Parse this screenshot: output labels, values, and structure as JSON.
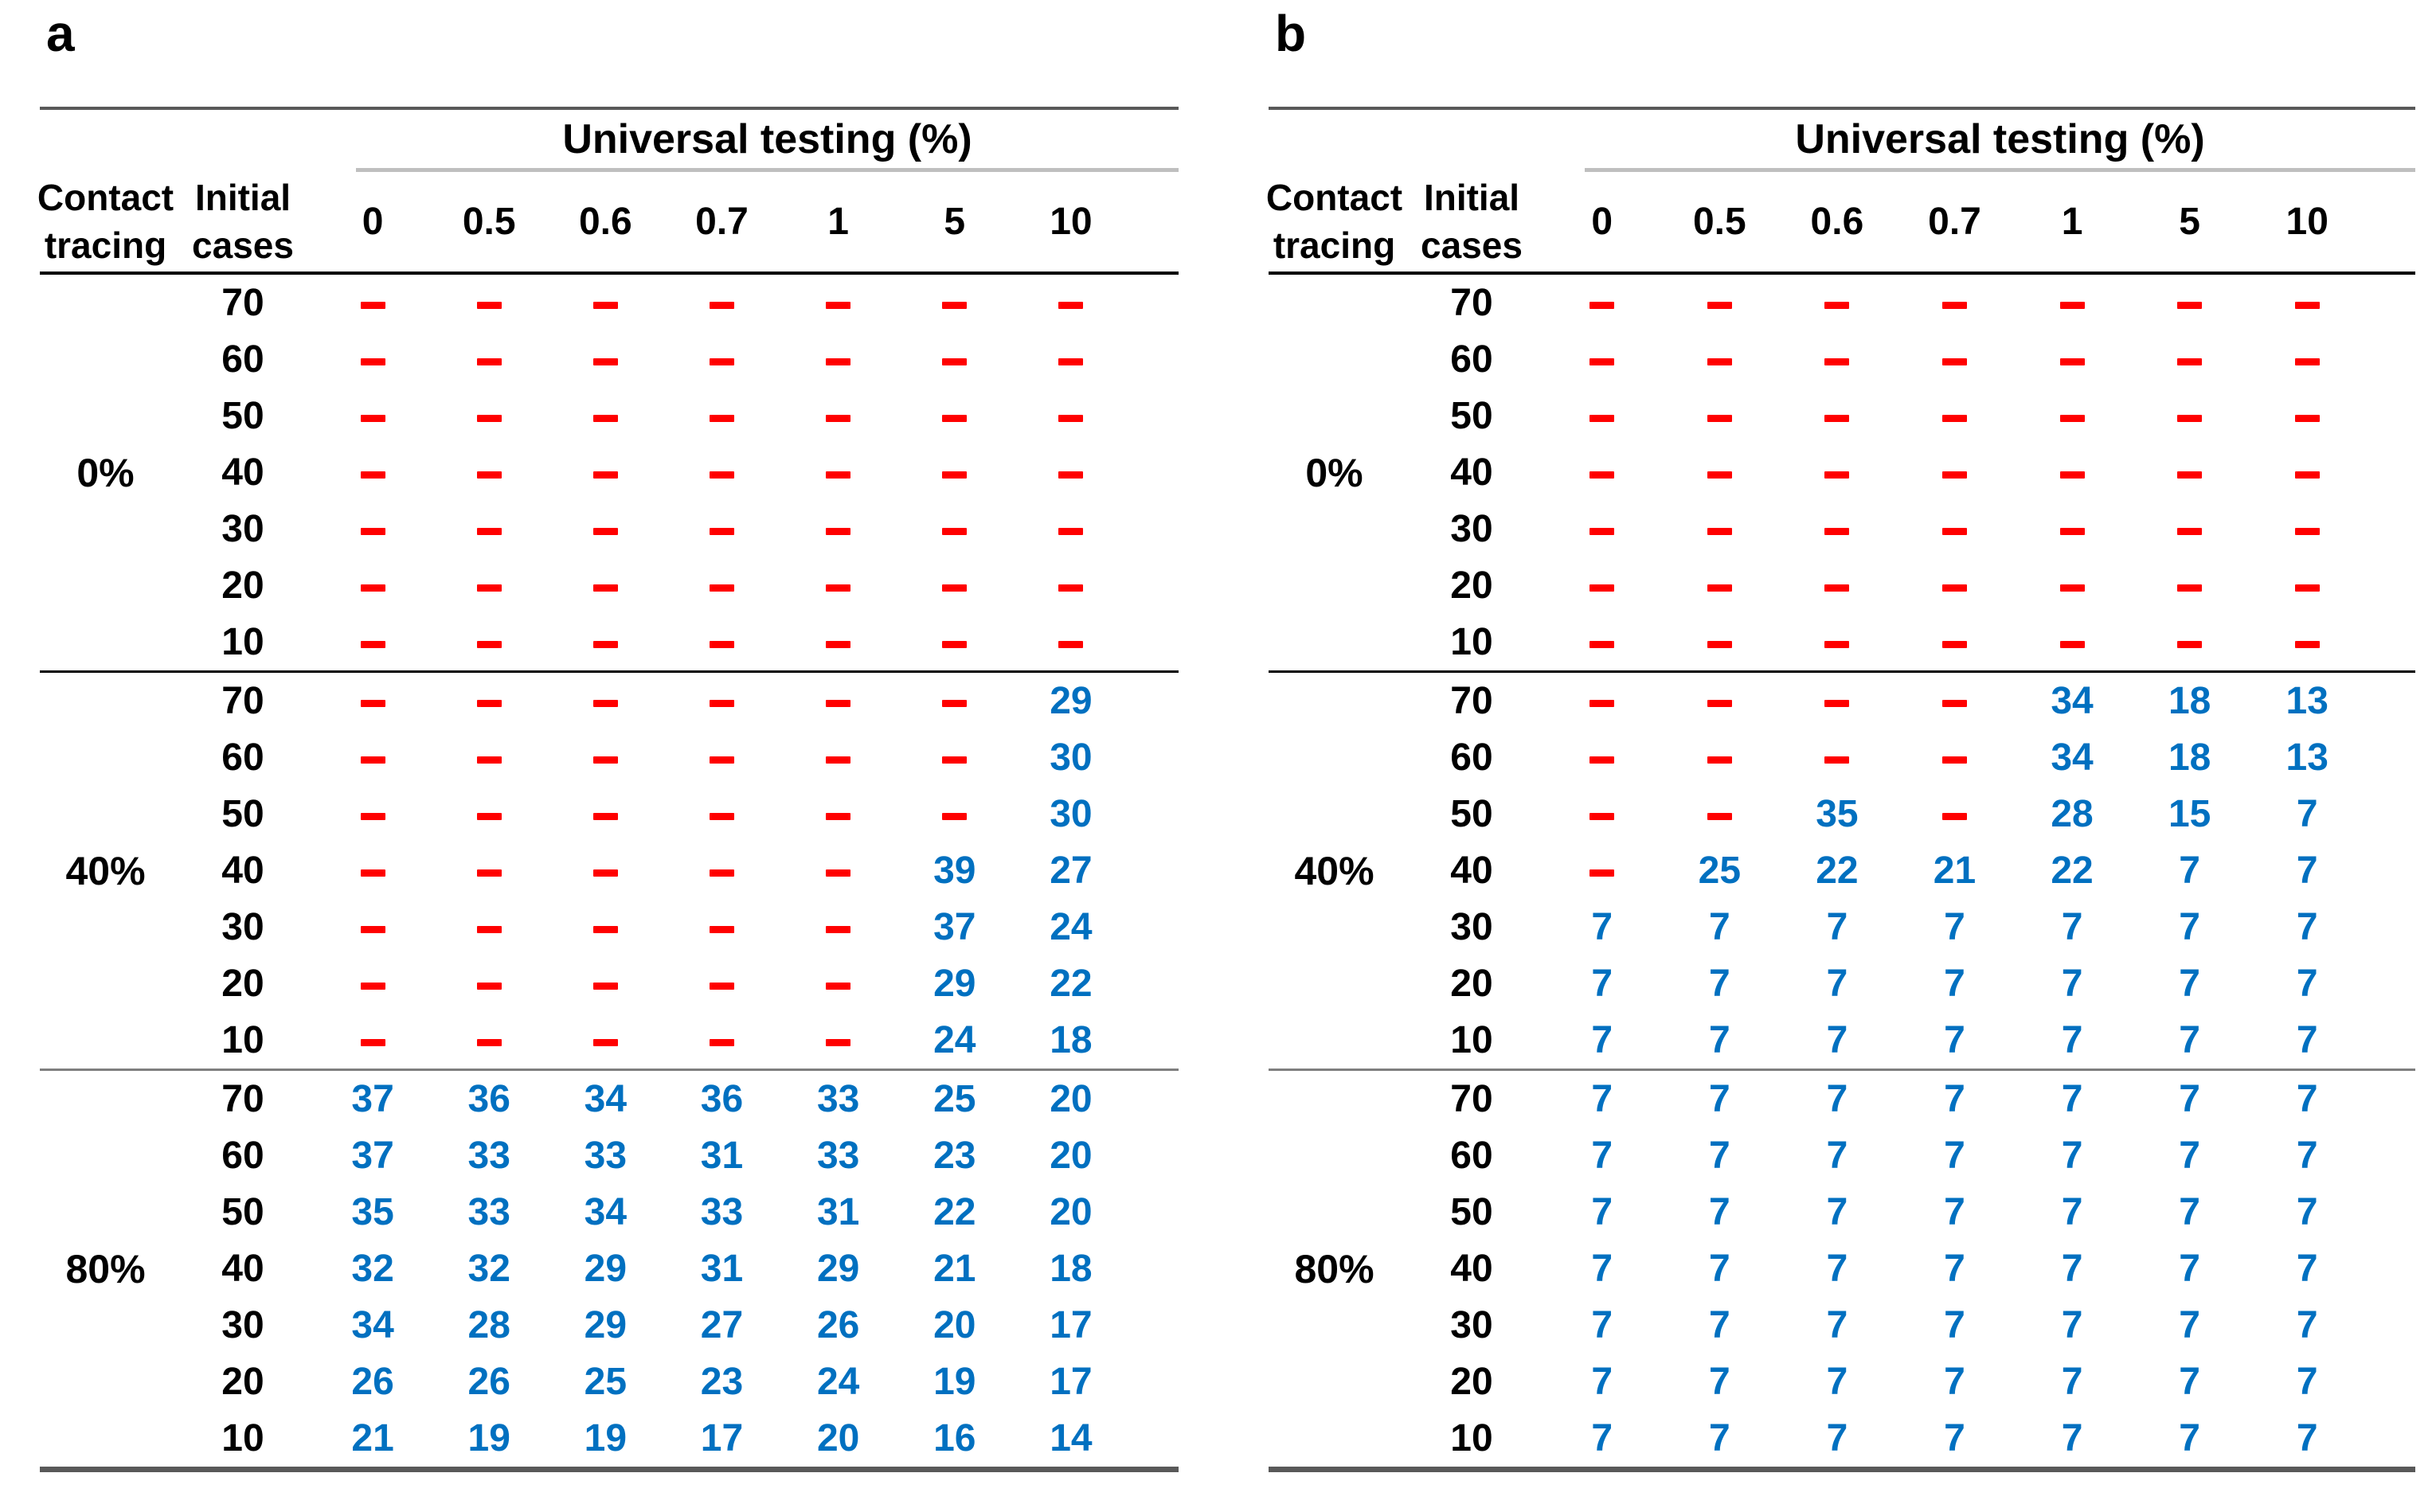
{
  "header": {
    "group_label": "Universal testing (%)",
    "row_header_1": "Contact tracing",
    "row_header_2": "Initial cases"
  },
  "colors": {
    "number_blue": "#0070C0",
    "dash_red": "#FF0000",
    "rule_dark_gray": "#595959",
    "rule_light_gray": "#BFBFBF",
    "rule_mid_gray": "#7F7F7F",
    "rule_black": "#000000"
  },
  "chart_data": [
    {
      "type": "table",
      "panel": "a",
      "column_group_title": "Universal testing (%)",
      "columns": [
        "0",
        "0.5",
        "0.6",
        "0.7",
        "1",
        "5",
        "10"
      ],
      "initial_cases": [
        "70",
        "60",
        "50",
        "40",
        "30",
        "20",
        "10"
      ],
      "row_groups": [
        "0%",
        "40%",
        "80%"
      ],
      "cells": {
        "0%": [
          [
            "–",
            "–",
            "–",
            "–",
            "–",
            "–",
            "–"
          ],
          [
            "–",
            "–",
            "–",
            "–",
            "–",
            "–",
            "–"
          ],
          [
            "–",
            "–",
            "–",
            "–",
            "–",
            "–",
            "–"
          ],
          [
            "–",
            "–",
            "–",
            "–",
            "–",
            "–",
            "–"
          ],
          [
            "–",
            "–",
            "–",
            "–",
            "–",
            "–",
            "–"
          ],
          [
            "–",
            "–",
            "–",
            "–",
            "–",
            "–",
            "–"
          ],
          [
            "–",
            "–",
            "–",
            "–",
            "–",
            "–",
            "–"
          ]
        ],
        "40%": [
          [
            "–",
            "–",
            "–",
            "–",
            "–",
            "–",
            "29"
          ],
          [
            "–",
            "–",
            "–",
            "–",
            "–",
            "–",
            "30"
          ],
          [
            "–",
            "–",
            "–",
            "–",
            "–",
            "–",
            "30"
          ],
          [
            "–",
            "–",
            "–",
            "–",
            "–",
            "39",
            "27"
          ],
          [
            "–",
            "–",
            "–",
            "–",
            "–",
            "37",
            "24"
          ],
          [
            "–",
            "–",
            "–",
            "–",
            "–",
            "29",
            "22"
          ],
          [
            "–",
            "–",
            "–",
            "–",
            "–",
            "24",
            "18"
          ]
        ],
        "80%": [
          [
            "37",
            "36",
            "34",
            "36",
            "33",
            "25",
            "20"
          ],
          [
            "37",
            "33",
            "33",
            "31",
            "33",
            "23",
            "20"
          ],
          [
            "35",
            "33",
            "34",
            "33",
            "31",
            "22",
            "20"
          ],
          [
            "32",
            "32",
            "29",
            "31",
            "29",
            "21",
            "18"
          ],
          [
            "34",
            "28",
            "29",
            "27",
            "26",
            "20",
            "17"
          ],
          [
            "26",
            "26",
            "25",
            "23",
            "24",
            "19",
            "17"
          ],
          [
            "21",
            "19",
            "19",
            "17",
            "20",
            "16",
            "14"
          ]
        ]
      }
    },
    {
      "type": "table",
      "panel": "b",
      "column_group_title": "Universal testing (%)",
      "columns": [
        "0",
        "0.5",
        "0.6",
        "0.7",
        "1",
        "5",
        "10"
      ],
      "initial_cases": [
        "70",
        "60",
        "50",
        "40",
        "30",
        "20",
        "10"
      ],
      "row_groups": [
        "0%",
        "40%",
        "80%"
      ],
      "cells": {
        "0%": [
          [
            "–",
            "–",
            "–",
            "–",
            "–",
            "–",
            "–"
          ],
          [
            "–",
            "–",
            "–",
            "–",
            "–",
            "–",
            "–"
          ],
          [
            "–",
            "–",
            "–",
            "–",
            "–",
            "–",
            "–"
          ],
          [
            "–",
            "–",
            "–",
            "–",
            "–",
            "–",
            "–"
          ],
          [
            "–",
            "–",
            "–",
            "–",
            "–",
            "–",
            "–"
          ],
          [
            "–",
            "–",
            "–",
            "–",
            "–",
            "–",
            "–"
          ],
          [
            "–",
            "–",
            "–",
            "–",
            "–",
            "–",
            "–"
          ]
        ],
        "40%": [
          [
            "–",
            "–",
            "–",
            "–",
            "34",
            "18",
            "13"
          ],
          [
            "–",
            "–",
            "–",
            "–",
            "34",
            "18",
            "13"
          ],
          [
            "–",
            "–",
            "35",
            "–",
            "28",
            "15",
            "7"
          ],
          [
            "–",
            "25",
            "22",
            "21",
            "22",
            "7",
            "7"
          ],
          [
            "7",
            "7",
            "7",
            "7",
            "7",
            "7",
            "7"
          ],
          [
            "7",
            "7",
            "7",
            "7",
            "7",
            "7",
            "7"
          ],
          [
            "7",
            "7",
            "7",
            "7",
            "7",
            "7",
            "7"
          ]
        ],
        "80%": [
          [
            "7",
            "7",
            "7",
            "7",
            "7",
            "7",
            "7"
          ],
          [
            "7",
            "7",
            "7",
            "7",
            "7",
            "7",
            "7"
          ],
          [
            "7",
            "7",
            "7",
            "7",
            "7",
            "7",
            "7"
          ],
          [
            "7",
            "7",
            "7",
            "7",
            "7",
            "7",
            "7"
          ],
          [
            "7",
            "7",
            "7",
            "7",
            "7",
            "7",
            "7"
          ],
          [
            "7",
            "7",
            "7",
            "7",
            "7",
            "7",
            "7"
          ],
          [
            "7",
            "7",
            "7",
            "7",
            "7",
            "7",
            "7"
          ]
        ]
      }
    }
  ]
}
